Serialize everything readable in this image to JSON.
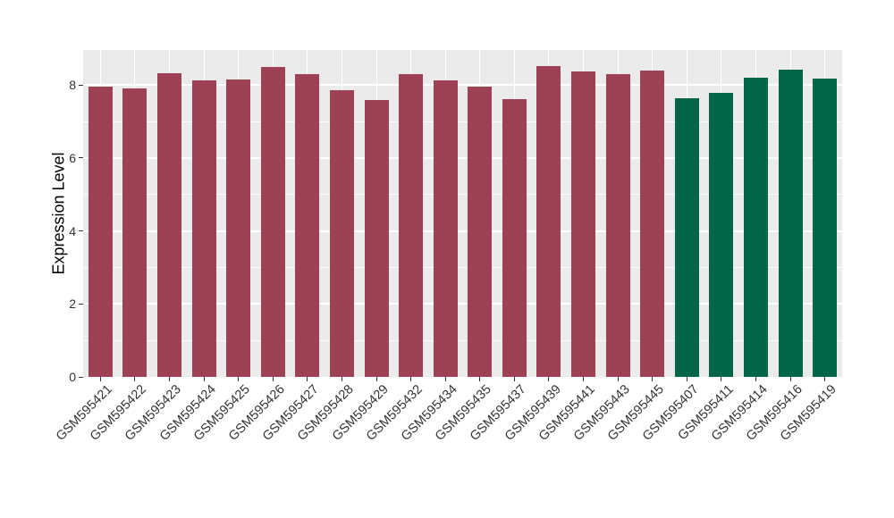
{
  "chart_data": {
    "type": "bar",
    "title": "",
    "xlabel": "",
    "ylabel": "Expression Level",
    "ylim": [
      0,
      8.96
    ],
    "yticks": [
      0,
      2,
      4,
      6,
      8
    ],
    "grid_major_every": 2,
    "grid_minor_every": 1,
    "legend_position": "none",
    "categories": [
      "GSM595421",
      "GSM595422",
      "GSM595423",
      "GSM595424",
      "GSM595425",
      "GSM595426",
      "GSM595427",
      "GSM595428",
      "GSM595429",
      "GSM595432",
      "GSM595434",
      "GSM595435",
      "GSM595437",
      "GSM595439",
      "GSM595441",
      "GSM595443",
      "GSM595445",
      "GSM595407",
      "GSM595411",
      "GSM595414",
      "GSM595416",
      "GSM595419"
    ],
    "values": [
      7.96,
      7.9,
      8.32,
      8.13,
      8.16,
      8.49,
      8.31,
      7.85,
      7.6,
      8.31,
      8.13,
      7.95,
      7.61,
      8.53,
      8.38,
      8.31,
      8.39,
      7.65,
      7.78,
      8.21,
      8.41,
      8.17
    ],
    "bar_groups": [
      0,
      0,
      0,
      0,
      0,
      0,
      0,
      0,
      0,
      0,
      0,
      0,
      0,
      0,
      0,
      0,
      0,
      1,
      1,
      1,
      1,
      1
    ],
    "group_colors": [
      "#9C4254",
      "#006647"
    ]
  },
  "style": {
    "figure_bg": "#FFFFFF",
    "panel_bg": "#EBEBEB",
    "grid_color": "#FFFFFF",
    "axis_text_color": "#333333",
    "axis_title_color": "#000000"
  }
}
